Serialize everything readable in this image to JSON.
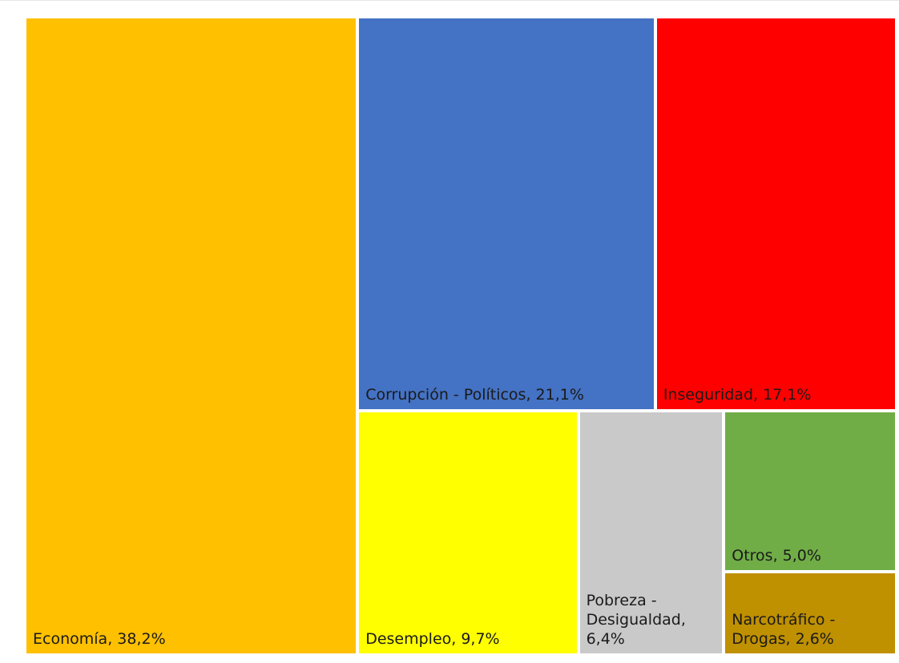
{
  "chart_data": {
    "type": "treemap",
    "categories": [
      "Economía",
      "Corrupción - Políticos",
      "Inseguridad",
      "Desempleo",
      "Pobreza - Desigualdad",
      "Otros",
      "Narcotráfico - Drogas"
    ],
    "values": [
      38.2,
      21.1,
      17.1,
      9.7,
      6.4,
      5.0,
      2.6
    ],
    "value_labels": [
      ", 38,2%",
      ", 21,1%",
      ", 17,1%",
      ", 9,7%",
      ", 6,4%",
      ", 5,0%",
      ", 2,6%"
    ],
    "colors": [
      "#ffc000",
      "#4472c4",
      "#ff0000",
      "#ffff00",
      "#c9c9c9",
      "#70ad47",
      "#bf9000"
    ]
  }
}
